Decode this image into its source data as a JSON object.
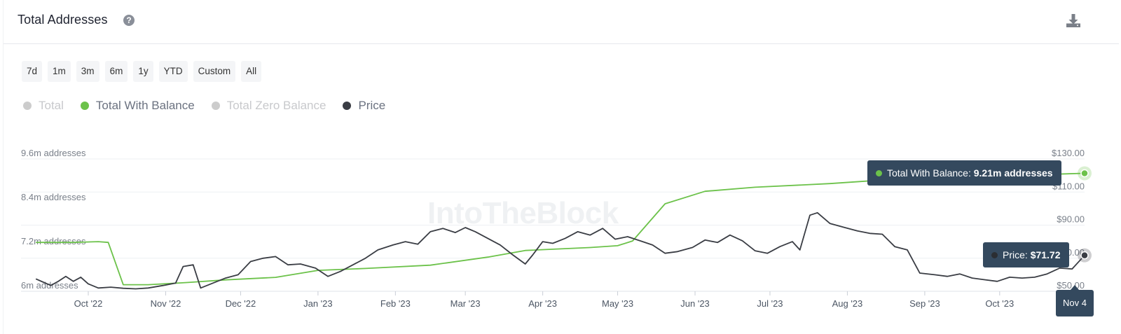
{
  "header": {
    "title": "Total Addresses",
    "help_icon": "?",
    "download_icon": "download-icon"
  },
  "ranges": [
    "7d",
    "1m",
    "3m",
    "6m",
    "1y",
    "YTD",
    "Custom",
    "All"
  ],
  "legend": [
    {
      "label": "Total",
      "color": "#cccccc",
      "enabled": false
    },
    {
      "label": "Total With Balance",
      "color": "#6cc24a",
      "enabled": true
    },
    {
      "label": "Total Zero Balance",
      "color": "#cccccc",
      "enabled": false
    },
    {
      "label": "Price",
      "color": "#3a3d44",
      "enabled": true
    }
  ],
  "watermark": "IntoTheBlock",
  "chart_data": {
    "type": "line",
    "x_labels": [
      "Oct '22",
      "Nov '22",
      "Dec '22",
      "Jan '23",
      "Feb '23",
      "Mar '23",
      "Apr '23",
      "May '23",
      "Jun '23",
      "Jul '23",
      "Aug '23",
      "Sep '23",
      "Oct '23",
      "Nov 4"
    ],
    "y_left_labels": [
      "9.6m addresses",
      "8.4m addresses",
      "7.2m addresses",
      "6m addresses"
    ],
    "y_left_range": [
      6.0,
      9.6
    ],
    "y_right_labels": [
      "$130.00",
      "$110.00",
      "$90.00",
      "$70.00",
      "$50.00"
    ],
    "y_right_range": [
      50,
      130
    ],
    "grid": true,
    "series": [
      {
        "name": "Total With Balance",
        "axis": "left",
        "color": "#6cc24a",
        "points": [
          [
            "2022-09-10",
            7.33
          ],
          [
            "2022-09-25",
            7.33
          ],
          [
            "2022-10-05",
            7.35
          ],
          [
            "2022-10-09",
            7.33
          ],
          [
            "2022-10-15",
            6.18
          ],
          [
            "2022-10-25",
            6.18
          ],
          [
            "2022-11-10",
            6.24
          ],
          [
            "2022-11-25",
            6.31
          ],
          [
            "2022-12-15",
            6.38
          ],
          [
            "2023-01-01",
            6.57
          ],
          [
            "2023-01-20",
            6.62
          ],
          [
            "2023-02-15",
            6.71
          ],
          [
            "2023-03-10",
            6.93
          ],
          [
            "2023-03-25",
            7.11
          ],
          [
            "2023-04-20",
            7.19
          ],
          [
            "2023-05-01",
            7.24
          ],
          [
            "2023-05-07",
            7.37
          ],
          [
            "2023-05-20",
            8.38
          ],
          [
            "2023-06-05",
            8.72
          ],
          [
            "2023-06-25",
            8.83
          ],
          [
            "2023-07-25",
            8.93
          ],
          [
            "2023-08-20",
            9.05
          ],
          [
            "2023-09-15",
            9.11
          ],
          [
            "2023-10-10",
            9.16
          ],
          [
            "2023-11-04",
            9.21
          ]
        ]
      },
      {
        "name": "Price",
        "axis": "right",
        "color": "#3a3d44",
        "points": [
          [
            "2022-09-10",
            57.5
          ],
          [
            "2022-09-13",
            55.5
          ],
          [
            "2022-09-16",
            53.5
          ],
          [
            "2022-09-19",
            56.0
          ],
          [
            "2022-09-22",
            59.0
          ],
          [
            "2022-09-25",
            56.0
          ],
          [
            "2022-09-28",
            58.5
          ],
          [
            "2022-10-01",
            54.5
          ],
          [
            "2022-10-05",
            52.0
          ],
          [
            "2022-10-10",
            52.5
          ],
          [
            "2022-10-15",
            51.8
          ],
          [
            "2022-10-20",
            51.5
          ],
          [
            "2022-10-25",
            52.0
          ],
          [
            "2022-10-31",
            53.5
          ],
          [
            "2022-11-05",
            55.0
          ],
          [
            "2022-11-08",
            65.0
          ],
          [
            "2022-11-12",
            66.0
          ],
          [
            "2022-11-15",
            52.0
          ],
          [
            "2022-11-20",
            55.0
          ],
          [
            "2022-11-25",
            58.0
          ],
          [
            "2022-11-30",
            60.0
          ],
          [
            "2022-12-05",
            68.0
          ],
          [
            "2022-12-10",
            70.0
          ],
          [
            "2022-12-15",
            71.0
          ],
          [
            "2022-12-20",
            66.0
          ],
          [
            "2022-12-25",
            66.5
          ],
          [
            "2022-12-31",
            64.0
          ],
          [
            "2023-01-05",
            59.0
          ],
          [
            "2023-01-10",
            62.0
          ],
          [
            "2023-01-15",
            66.0
          ],
          [
            "2023-01-20",
            70.0
          ],
          [
            "2023-01-25",
            75.0
          ],
          [
            "2023-01-31",
            78.0
          ],
          [
            "2023-02-05",
            80.0
          ],
          [
            "2023-02-10",
            78.5
          ],
          [
            "2023-02-15",
            86.0
          ],
          [
            "2023-02-20",
            88.0
          ],
          [
            "2023-02-25",
            85.5
          ],
          [
            "2023-03-01",
            88.5
          ],
          [
            "2023-03-05",
            86.0
          ],
          [
            "2023-03-10",
            82.0
          ],
          [
            "2023-03-15",
            78.0
          ],
          [
            "2023-03-20",
            72.0
          ],
          [
            "2023-03-25",
            66.5
          ],
          [
            "2023-03-28",
            72.0
          ],
          [
            "2023-04-01",
            80.0
          ],
          [
            "2023-04-05",
            79.0
          ],
          [
            "2023-04-10",
            82.0
          ],
          [
            "2023-04-15",
            86.0
          ],
          [
            "2023-04-20",
            84.0
          ],
          [
            "2023-04-25",
            88.0
          ],
          [
            "2023-04-30",
            81.5
          ],
          [
            "2023-05-05",
            83.0
          ],
          [
            "2023-05-10",
            80.5
          ],
          [
            "2023-05-15",
            78.0
          ],
          [
            "2023-05-20",
            73.0
          ],
          [
            "2023-05-25",
            74.0
          ],
          [
            "2023-05-31",
            76.5
          ],
          [
            "2023-06-05",
            81.0
          ],
          [
            "2023-06-10",
            79.5
          ],
          [
            "2023-06-15",
            84.0
          ],
          [
            "2023-06-20",
            80.5
          ],
          [
            "2023-06-25",
            74.5
          ],
          [
            "2023-06-30",
            73.0
          ],
          [
            "2023-07-05",
            77.0
          ],
          [
            "2023-07-10",
            80.0
          ],
          [
            "2023-07-13",
            75.0
          ],
          [
            "2023-07-17",
            96.0
          ],
          [
            "2023-07-20",
            97.5
          ],
          [
            "2023-07-25",
            91.0
          ],
          [
            "2023-07-31",
            88.5
          ],
          [
            "2023-08-05",
            86.5
          ],
          [
            "2023-08-10",
            85.0
          ],
          [
            "2023-08-15",
            84.5
          ],
          [
            "2023-08-20",
            77.0
          ],
          [
            "2023-08-25",
            75.0
          ],
          [
            "2023-08-30",
            61.0
          ],
          [
            "2023-09-05",
            60.0
          ],
          [
            "2023-09-10",
            59.0
          ],
          [
            "2023-09-15",
            60.5
          ],
          [
            "2023-09-20",
            58.0
          ],
          [
            "2023-09-25",
            57.0
          ],
          [
            "2023-09-30",
            56.0
          ],
          [
            "2023-10-05",
            58.5
          ],
          [
            "2023-10-10",
            58.0
          ],
          [
            "2023-10-15",
            58.5
          ],
          [
            "2023-10-20",
            60.5
          ],
          [
            "2023-10-25",
            64.0
          ],
          [
            "2023-10-30",
            63.5
          ],
          [
            "2023-11-04",
            71.72
          ]
        ]
      }
    ]
  },
  "tooltips": {
    "balance_label": "Total With Balance: ",
    "balance_value": "9.21m addresses",
    "price_label": "Price: ",
    "price_value": "$71.72",
    "date": "Nov 4"
  }
}
